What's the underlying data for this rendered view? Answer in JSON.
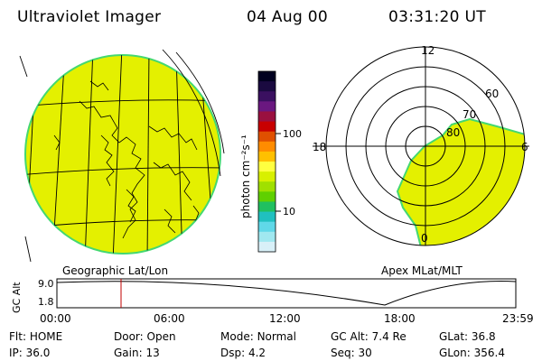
{
  "header": {
    "title": "Ultraviolet Imager",
    "date": "04 Aug 00",
    "time": "03:31:20 UT"
  },
  "colorbar": {
    "unit_label": "photon cm⁻²s⁻¹",
    "tick_100": "100",
    "tick_10": "10",
    "colors": [
      "#000020",
      "#1a0a40",
      "#3a1060",
      "#6a1880",
      "#9a1040",
      "#c80000",
      "#e05000",
      "#ff8c00",
      "#ffc000",
      "#ffff40",
      "#d8f000",
      "#a0e000",
      "#60d000",
      "#20c060",
      "#20c0c0",
      "#60d8e8",
      "#a0e8f0",
      "#d8f0f8"
    ]
  },
  "geo_map": {
    "label": "Geographic Lat/Lon",
    "fill": "#e4f000",
    "rim": "#44d870"
  },
  "polar_plot": {
    "label": "Apex MLat/MLT",
    "mlt_12": "12",
    "mlt_18": "18",
    "mlt_6": "6",
    "mlt_0": "0",
    "lat_60": "60",
    "lat_70": "70",
    "lat_80": "80"
  },
  "altitude_plot": {
    "ylabel": "GC Alt",
    "ytick_top": "9.0",
    "ytick_bottom": "1.8",
    "xticks": [
      "00:00",
      "06:00",
      "12:00",
      "18:00",
      "23:59"
    ],
    "marker_color": "#c00000"
  },
  "status": {
    "row1": [
      {
        "label": "Flt:",
        "value": "HOME"
      },
      {
        "label": "Door:",
        "value": "Open"
      },
      {
        "label": "Mode:",
        "value": "Normal"
      },
      {
        "label": "GC Alt:",
        "value": "7.4 Re"
      },
      {
        "label": "GLat:",
        "value": "36.8"
      }
    ],
    "row2": [
      {
        "label": "IP:",
        "value": "36.0"
      },
      {
        "label": "Gain:",
        "value": "13"
      },
      {
        "label": "Dsp:",
        "value": "4.2"
      },
      {
        "label": "Seq:",
        "value": "30"
      },
      {
        "label": "GLon:",
        "value": "356.4"
      }
    ]
  }
}
